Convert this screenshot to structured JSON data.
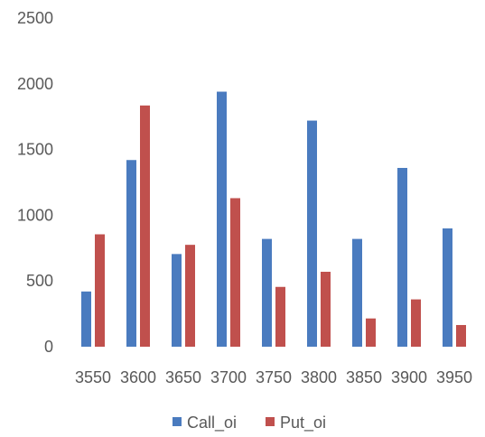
{
  "chart_data": {
    "type": "bar",
    "categories": [
      "3550",
      "3600",
      "3650",
      "3700",
      "3750",
      "3800",
      "3850",
      "3900",
      "3950"
    ],
    "series": [
      {
        "name": "Call_oi",
        "color": "#4a7bbf",
        "values": [
          420,
          1420,
          705,
          1940,
          820,
          1720,
          820,
          1360,
          900
        ]
      },
      {
        "name": "Put_oi",
        "color": "#c0504d",
        "values": [
          855,
          1835,
          775,
          1130,
          455,
          570,
          215,
          360,
          165
        ]
      }
    ],
    "y_ticks": [
      "0",
      "500",
      "1000",
      "1500",
      "2000",
      "2500"
    ],
    "ylim": [
      0,
      2500
    ],
    "grid": false,
    "legend_position": "bottom",
    "title": "",
    "xlabel": "",
    "ylabel": ""
  }
}
